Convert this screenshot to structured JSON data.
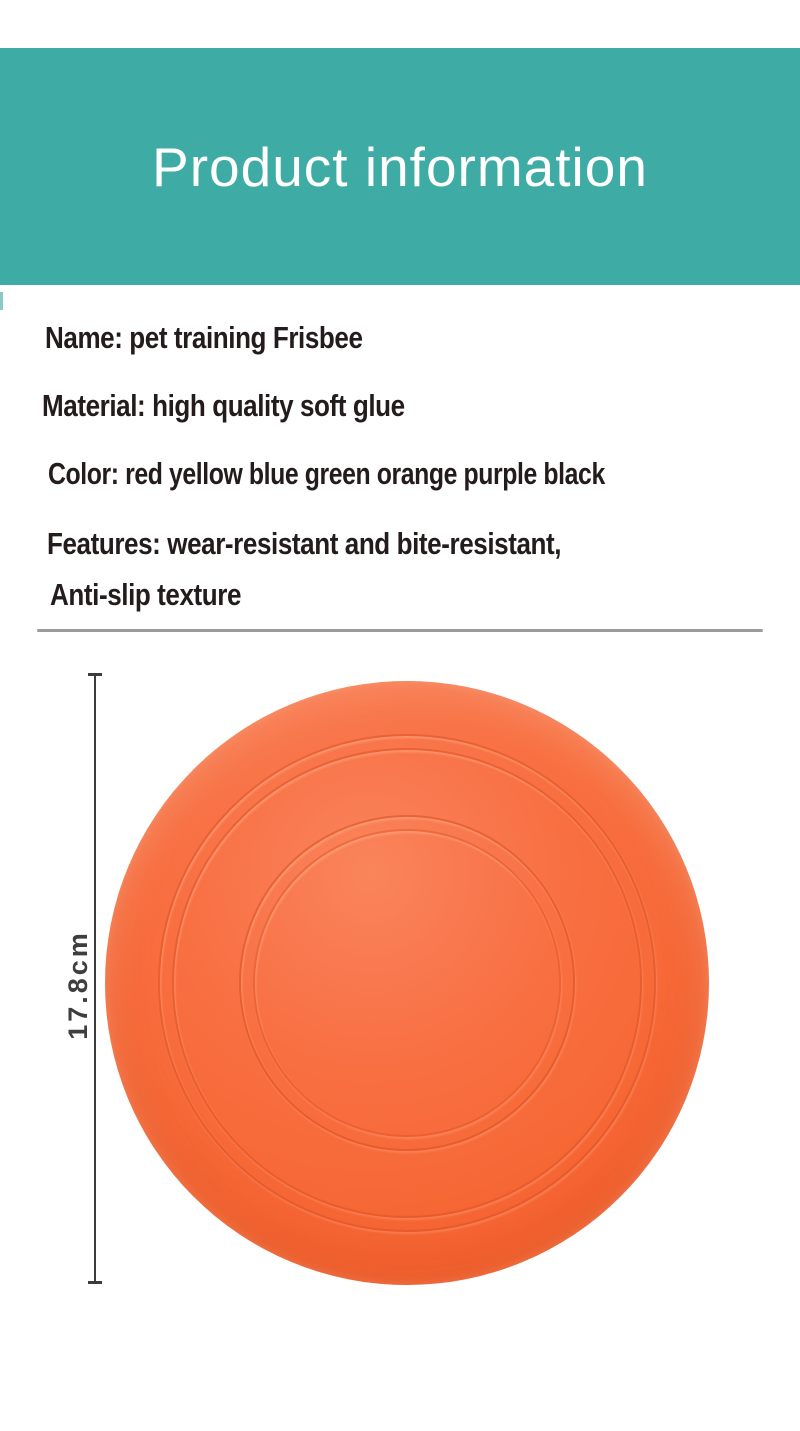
{
  "header": {
    "title": "Product information",
    "background_color": "#3EACA5",
    "text_color": "#FFFFFF"
  },
  "specs": {
    "name": "Name: pet training Frisbee",
    "material": "Material: high quality soft glue",
    "color": "Color: red yellow blue green orange purple black",
    "features_line_1": "Features: wear-resistant and bite-resistant,",
    "features_line_2": "Anti-slip texture",
    "text_color": "#241C1C"
  },
  "figure": {
    "dimension_label": "17.8cm",
    "disc_color": "#F76B3C",
    "dimension_line_color": "#3C3C3C",
    "divider_color": "#9B9B9B"
  }
}
